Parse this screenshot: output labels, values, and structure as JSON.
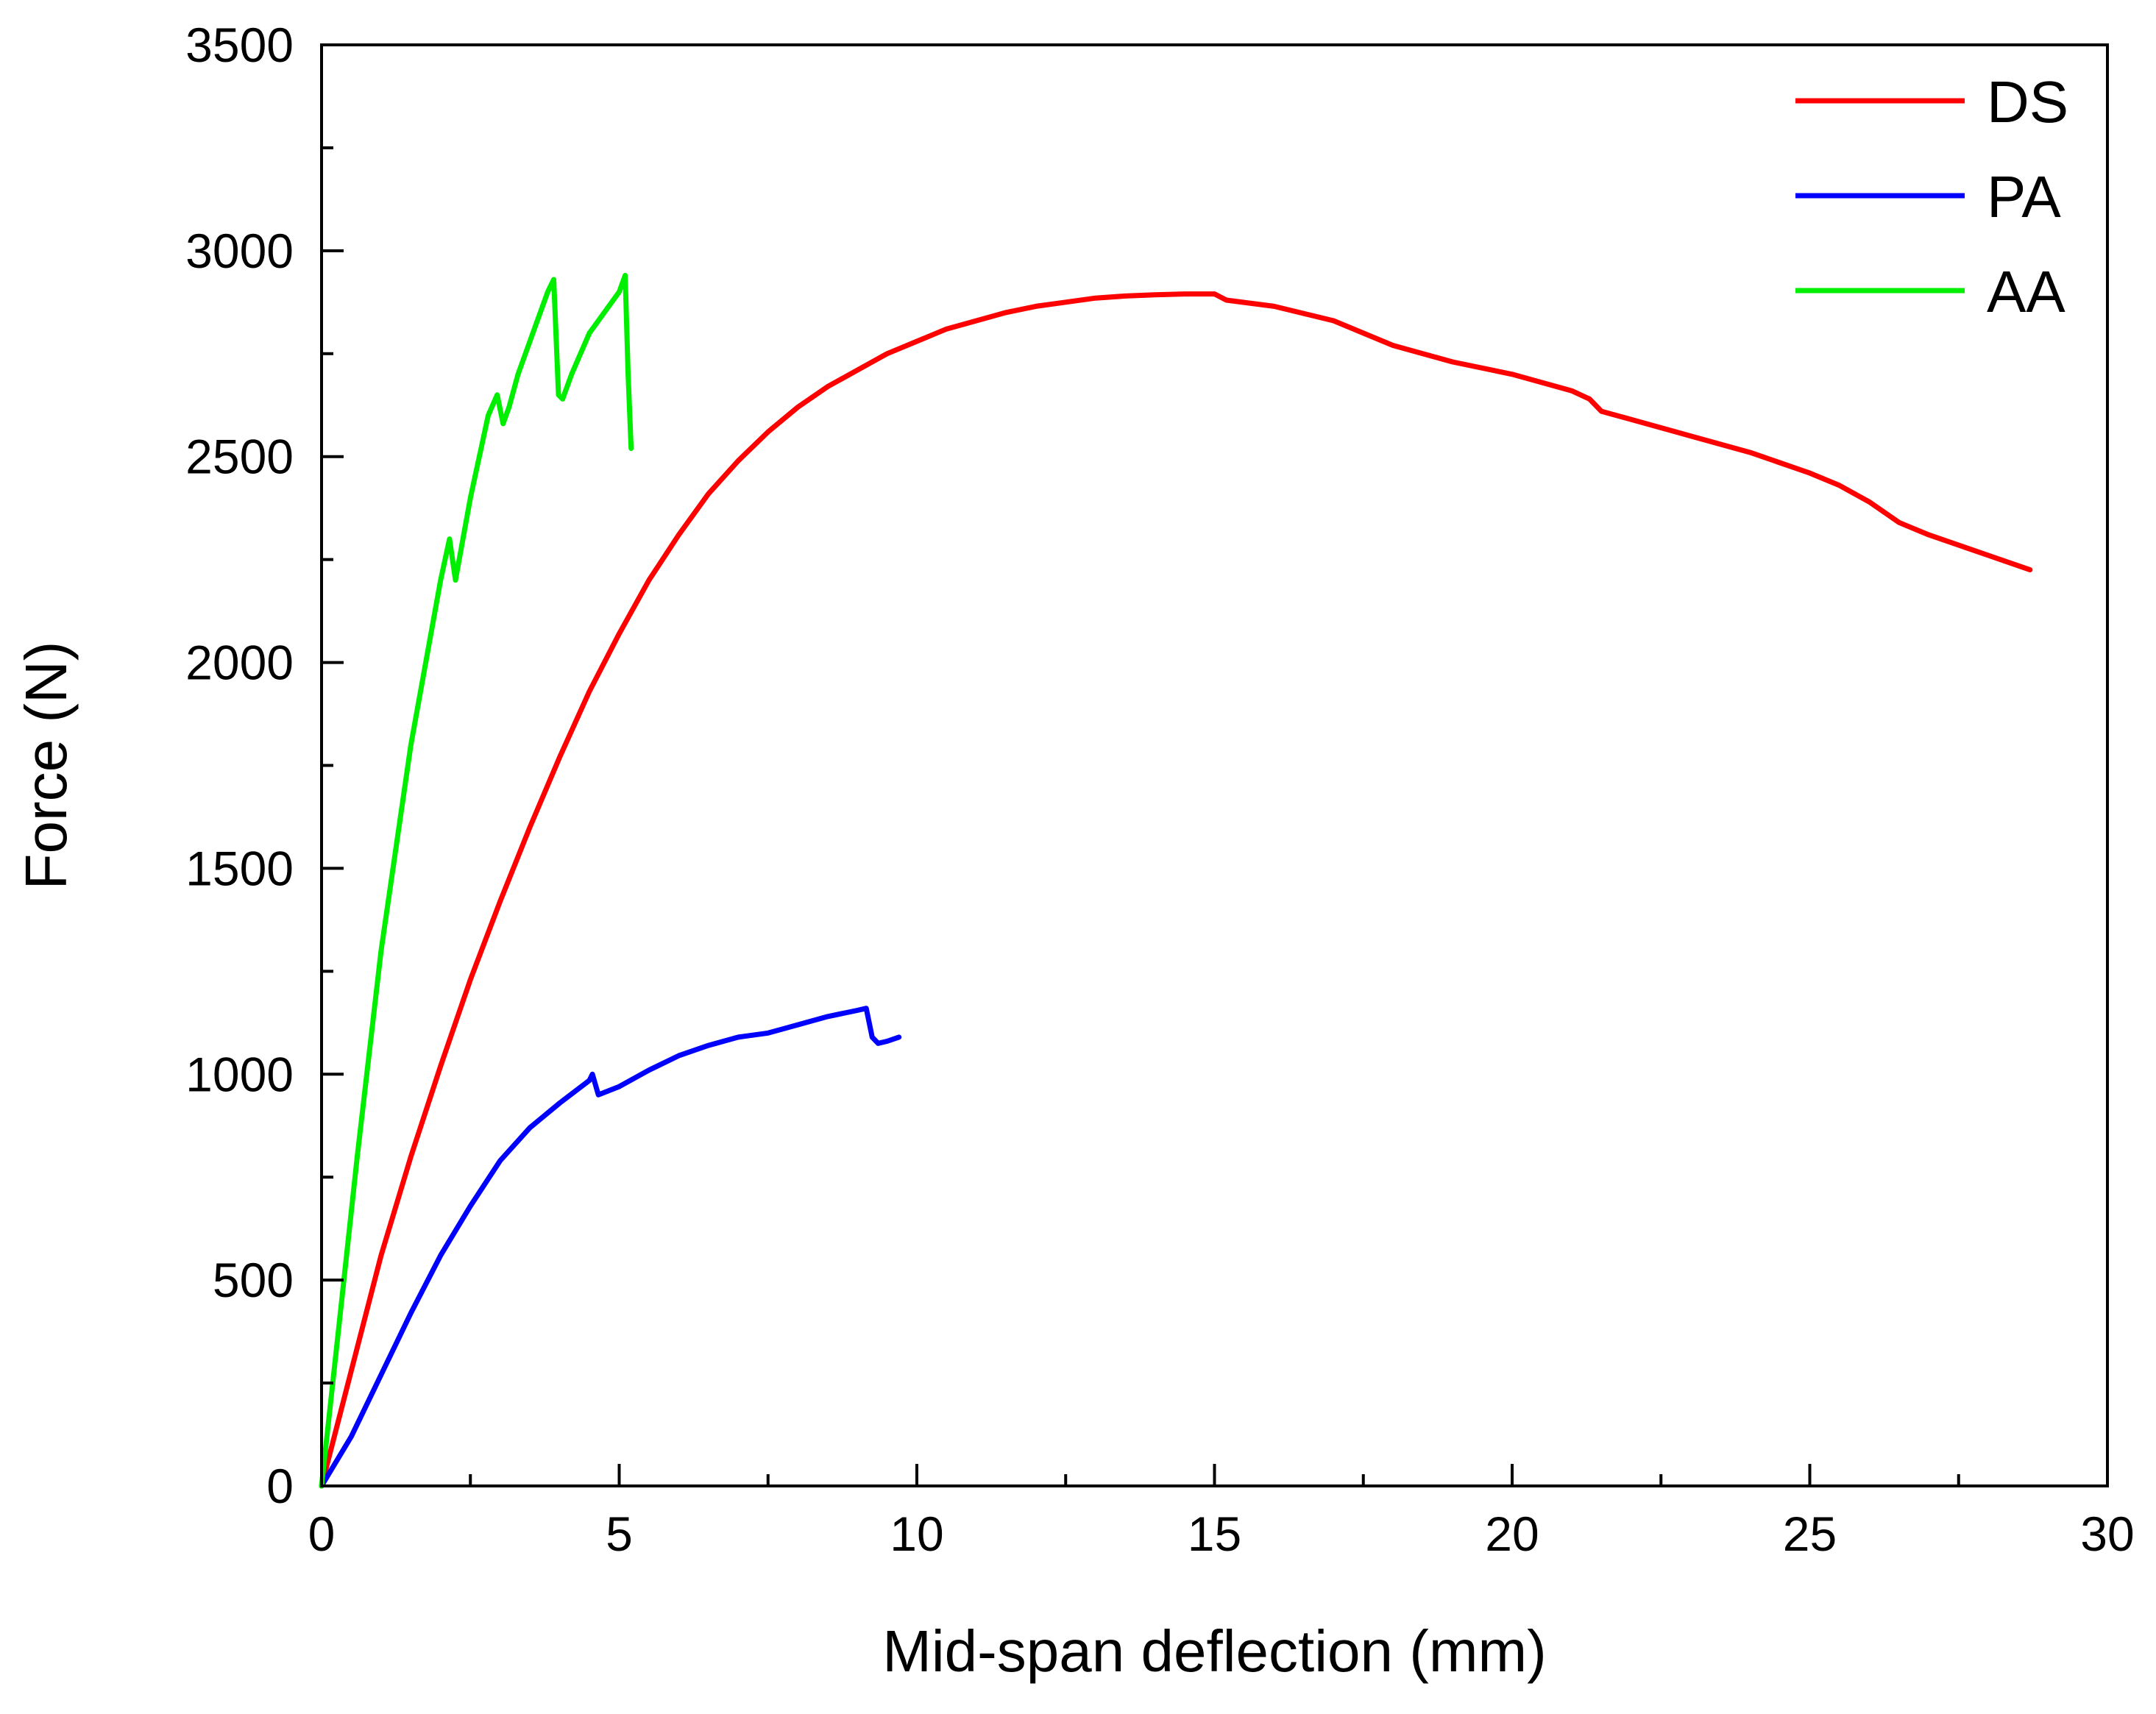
{
  "chart_data": {
    "type": "line",
    "title": "",
    "xlabel": "Mid-span deflection (mm)",
    "ylabel": "Force (N)",
    "xlim": [
      0,
      30
    ],
    "ylim": [
      0,
      3500
    ],
    "xticks": [
      0,
      5,
      10,
      15,
      20,
      25,
      30
    ],
    "yticks": [
      0,
      500,
      1000,
      1500,
      2000,
      2500,
      3000,
      3500
    ],
    "x_tick_labels": [
      "0",
      "5",
      "10",
      "15",
      "20",
      "25",
      "30"
    ],
    "y_tick_labels": [
      "0",
      "500",
      "1000",
      "1500",
      "2000",
      "2500",
      "3000",
      "3500"
    ],
    "grid": false,
    "legend_position": "top-right",
    "series": [
      {
        "name": "DS",
        "color": "#ff0000",
        "x": [
          0,
          0.5,
          1.0,
          1.5,
          2.0,
          2.5,
          3.0,
          3.5,
          4.0,
          4.5,
          5.0,
          5.5,
          6.0,
          6.5,
          7.0,
          7.5,
          8.0,
          8.5,
          9.0,
          9.5,
          10.0,
          10.5,
          11.0,
          11.5,
          12.0,
          12.5,
          13.0,
          13.5,
          14.0,
          14.5,
          15.0,
          15.2,
          16.0,
          17.0,
          18.0,
          19.0,
          20.0,
          21.0,
          21.3,
          21.5,
          22.0,
          23.0,
          24.0,
          25.0,
          25.5,
          26.0,
          26.5,
          27.0,
          28.0,
          28.7
        ],
        "y": [
          0,
          280,
          560,
          800,
          1020,
          1230,
          1420,
          1600,
          1770,
          1930,
          2070,
          2200,
          2310,
          2410,
          2490,
          2560,
          2620,
          2670,
          2710,
          2750,
          2780,
          2810,
          2830,
          2850,
          2865,
          2875,
          2885,
          2890,
          2893,
          2895,
          2895,
          2880,
          2865,
          2830,
          2770,
          2730,
          2700,
          2660,
          2640,
          2610,
          2590,
          2550,
          2510,
          2460,
          2430,
          2390,
          2340,
          2310,
          2260,
          2225
        ]
      },
      {
        "name": "PA",
        "color": "#0000ff",
        "x": [
          0,
          0.5,
          1.0,
          1.5,
          2.0,
          2.5,
          3.0,
          3.5,
          4.0,
          4.5,
          4.55,
          4.65,
          5.0,
          5.5,
          6.0,
          6.5,
          7.0,
          7.5,
          8.0,
          8.5,
          9.0,
          9.15,
          9.25,
          9.35,
          9.5,
          9.7
        ],
        "y": [
          0,
          120,
          270,
          420,
          560,
          680,
          790,
          870,
          930,
          985,
          1000,
          950,
          970,
          1010,
          1045,
          1070,
          1090,
          1100,
          1120,
          1140,
          1155,
          1160,
          1090,
          1075,
          1080,
          1090
        ]
      },
      {
        "name": "AA",
        "color": "#00ee00",
        "x": [
          0,
          0.3,
          0.6,
          1.0,
          1.5,
          2.0,
          2.15,
          2.25,
          2.35,
          2.5,
          2.8,
          2.95,
          3.05,
          3.15,
          3.3,
          3.6,
          3.8,
          3.9,
          3.98,
          4.05,
          4.2,
          4.5,
          4.8,
          5.0,
          5.1,
          5.15,
          5.2
        ],
        "y": [
          0,
          400,
          800,
          1300,
          1800,
          2200,
          2300,
          2200,
          2280,
          2400,
          2600,
          2650,
          2580,
          2620,
          2700,
          2820,
          2900,
          2930,
          2650,
          2640,
          2700,
          2800,
          2860,
          2900,
          2940,
          2700,
          2520
        ]
      }
    ]
  }
}
